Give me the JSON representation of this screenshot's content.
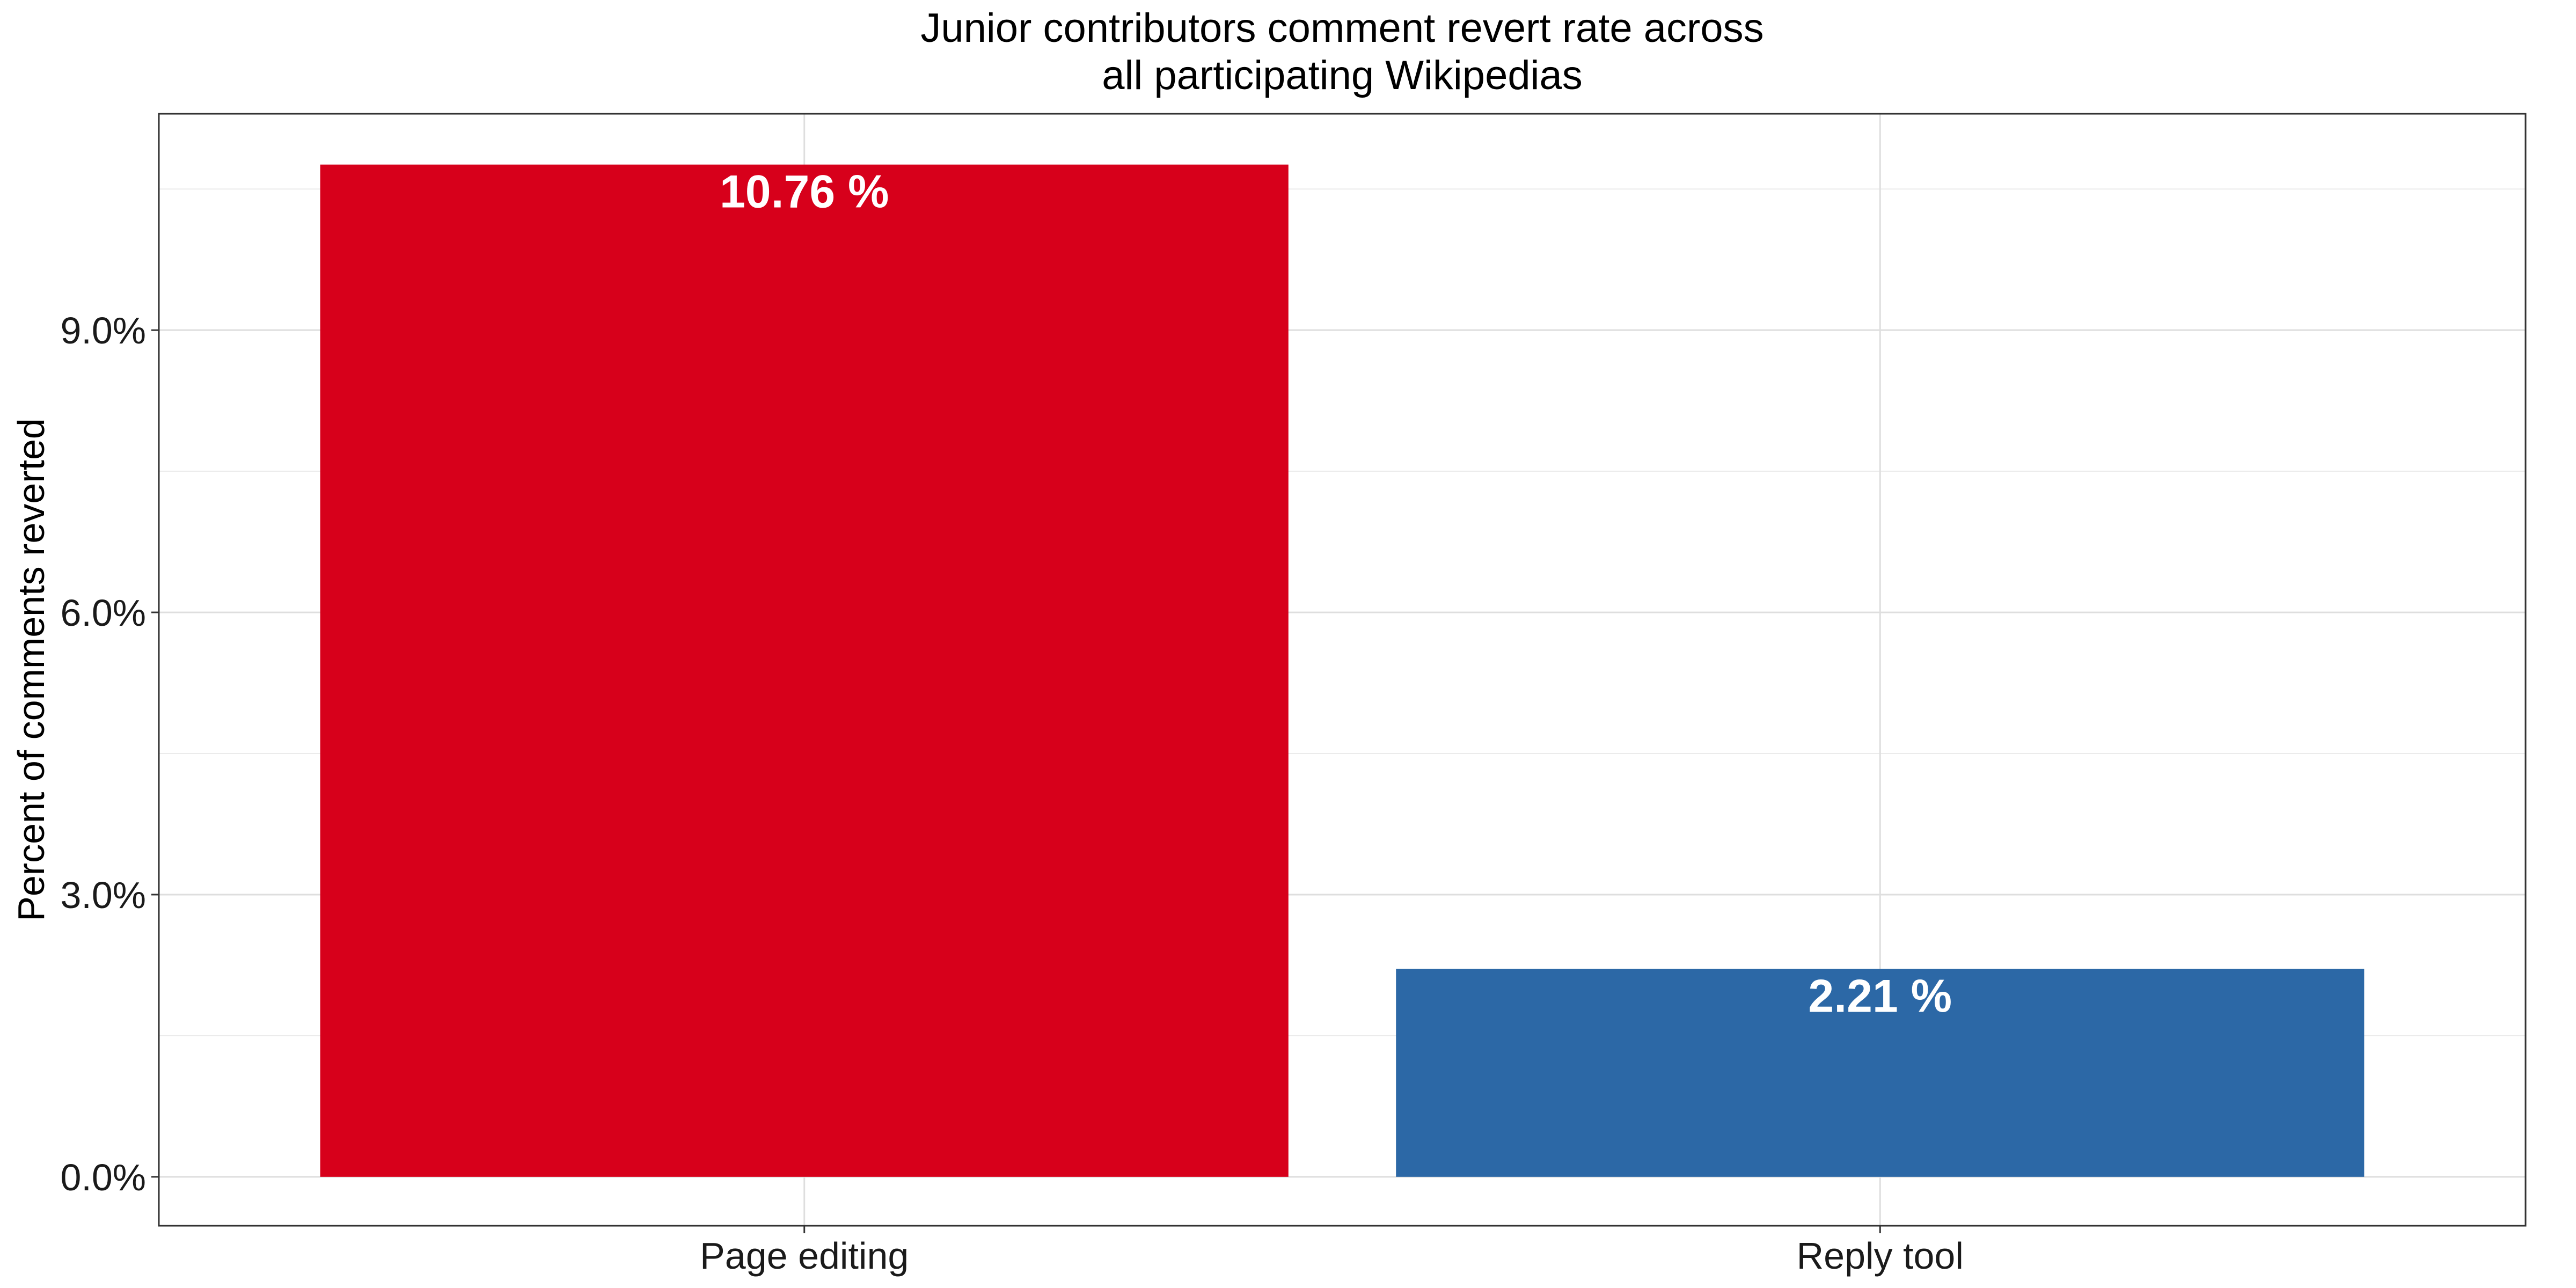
{
  "chart_data": {
    "type": "bar",
    "title": "Junior contributors comment revert rate across\nall participating Wikipedias",
    "ylabel": "Percent of comments reverted",
    "xlabel": "",
    "categories": [
      "Page editing",
      "Reply tool"
    ],
    "values": [
      10.76,
      2.21
    ],
    "data_labels": [
      "10.76 %",
      "2.21 %"
    ],
    "colors": [
      "#d7001b",
      "#2c68a6"
    ],
    "y_ticks": [
      0,
      3,
      6,
      9
    ],
    "y_tick_labels": [
      "0.0%",
      "3.0%",
      "6.0%",
      "9.0%"
    ],
    "ylim": [
      -0.52,
      11.3
    ],
    "grid": true,
    "legend": "none"
  }
}
